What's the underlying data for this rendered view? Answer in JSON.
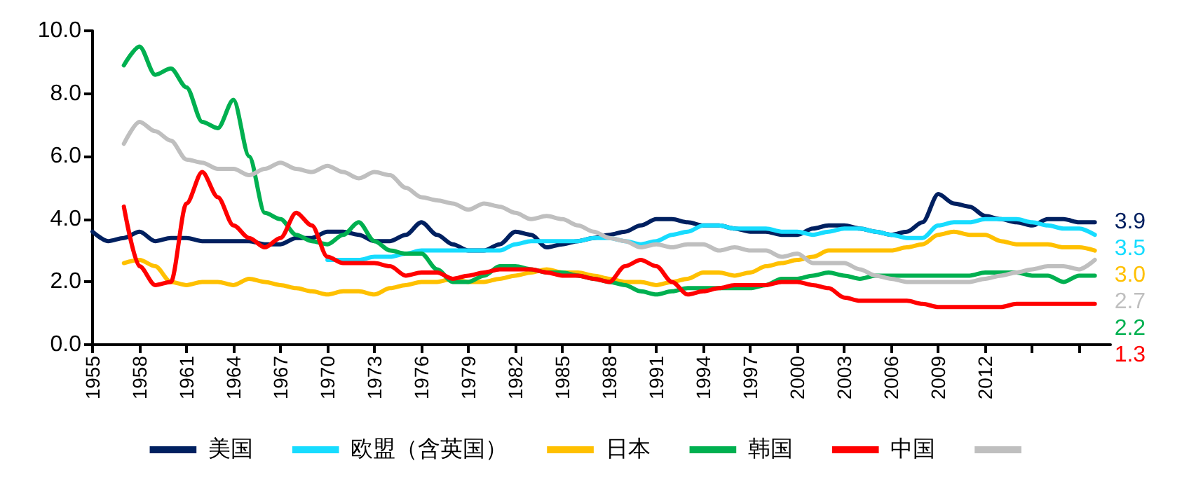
{
  "chart_data": {
    "type": "line",
    "x": [
      1955,
      1956,
      1957,
      1958,
      1959,
      1960,
      1961,
      1962,
      1963,
      1964,
      1965,
      1966,
      1967,
      1968,
      1969,
      1970,
      1971,
      1972,
      1973,
      1974,
      1975,
      1976,
      1977,
      1978,
      1979,
      1980,
      1981,
      1982,
      1983,
      1984,
      1985,
      1986,
      1987,
      1988,
      1989,
      1990,
      1991,
      1992,
      1993,
      1994,
      1995,
      1996,
      1997,
      1998,
      1999,
      2000,
      2001,
      2002,
      2003,
      2004,
      2005,
      2006,
      2007,
      2008,
      2009,
      2010,
      2011,
      2012,
      2013,
      2014,
      2015,
      2016,
      2017,
      2018,
      2019
    ],
    "series": [
      {
        "name": "美国",
        "color": "#002060",
        "values": [
          3.6,
          3.3,
          3.4,
          3.6,
          3.3,
          3.4,
          3.4,
          3.3,
          3.3,
          3.3,
          3.3,
          3.2,
          3.2,
          3.4,
          3.4,
          3.6,
          3.6,
          3.5,
          3.3,
          3.3,
          3.5,
          3.9,
          3.5,
          3.2,
          3.0,
          3.0,
          3.2,
          3.6,
          3.5,
          3.1,
          3.2,
          3.3,
          3.4,
          3.5,
          3.6,
          3.8,
          4.0,
          4.0,
          3.9,
          3.8,
          3.8,
          3.7,
          3.6,
          3.6,
          3.5,
          3.5,
          3.7,
          3.8,
          3.8,
          3.7,
          3.6,
          3.5,
          3.6,
          3.9,
          4.8,
          4.5,
          4.4,
          4.1,
          4.0,
          3.9,
          3.8,
          4.0,
          4.0,
          3.9,
          3.9
        ],
        "value_labels": [
          null,
          null,
          null,
          null,
          null,
          null,
          null,
          null,
          null,
          null,
          null,
          null,
          null,
          null,
          null,
          null,
          null,
          null,
          null,
          null,
          null,
          null,
          null,
          null,
          null,
          null,
          null,
          null,
          null,
          null,
          null,
          null,
          null,
          null,
          null,
          null,
          null,
          null,
          null,
          null,
          null,
          null,
          null,
          null,
          null,
          null,
          null,
          null,
          null,
          null,
          null,
          null,
          null,
          null,
          null,
          null,
          null,
          null,
          null,
          null,
          null,
          null,
          null,
          null,
          "3.9"
        ]
      },
      {
        "name": "欧盟（含英国）",
        "color": "#17DCFF",
        "values": [
          null,
          null,
          null,
          null,
          null,
          null,
          null,
          null,
          null,
          null,
          null,
          null,
          null,
          null,
          null,
          2.7,
          2.7,
          2.7,
          2.8,
          2.8,
          2.9,
          3.0,
          3.0,
          3.0,
          3.0,
          3.0,
          3.0,
          3.2,
          3.3,
          3.3,
          3.3,
          3.3,
          3.4,
          3.4,
          3.3,
          3.2,
          3.3,
          3.5,
          3.6,
          3.8,
          3.8,
          3.7,
          3.7,
          3.7,
          3.6,
          3.6,
          3.5,
          3.6,
          3.7,
          3.7,
          3.6,
          3.5,
          3.4,
          3.4,
          3.8,
          3.9,
          3.9,
          4.0,
          4.0,
          4.0,
          3.9,
          3.8,
          3.7,
          3.7,
          3.5
        ],
        "value_labels": [
          null,
          null,
          null,
          null,
          null,
          null,
          null,
          null,
          null,
          null,
          null,
          null,
          null,
          null,
          null,
          null,
          null,
          null,
          null,
          null,
          null,
          null,
          null,
          null,
          null,
          null,
          null,
          null,
          null,
          null,
          null,
          null,
          null,
          null,
          null,
          null,
          null,
          null,
          null,
          null,
          null,
          null,
          null,
          null,
          null,
          null,
          null,
          null,
          null,
          null,
          null,
          null,
          null,
          null,
          null,
          null,
          null,
          null,
          null,
          null,
          null,
          null,
          null,
          null,
          "3.5"
        ]
      },
      {
        "name": "日本",
        "color": "#FFC000",
        "values": [
          null,
          null,
          2.6,
          2.7,
          2.5,
          2.0,
          1.9,
          2.0,
          2.0,
          1.9,
          2.1,
          2.0,
          1.9,
          1.8,
          1.7,
          1.6,
          1.7,
          1.7,
          1.6,
          1.8,
          1.9,
          2.0,
          2.0,
          2.1,
          2.0,
          2.0,
          2.1,
          2.2,
          2.3,
          2.4,
          2.3,
          2.3,
          2.2,
          2.1,
          2.0,
          2.0,
          1.9,
          2.0,
          2.1,
          2.3,
          2.3,
          2.2,
          2.3,
          2.5,
          2.6,
          2.7,
          2.8,
          3.0,
          3.0,
          3.0,
          3.0,
          3.0,
          3.1,
          3.2,
          3.5,
          3.6,
          3.5,
          3.5,
          3.3,
          3.2,
          3.2,
          3.2,
          3.1,
          3.1,
          3.0
        ],
        "value_labels": [
          null,
          null,
          null,
          null,
          null,
          null,
          null,
          null,
          null,
          null,
          null,
          null,
          null,
          null,
          null,
          null,
          null,
          null,
          null,
          null,
          null,
          null,
          null,
          null,
          null,
          null,
          null,
          null,
          null,
          null,
          null,
          null,
          null,
          null,
          null,
          null,
          null,
          null,
          null,
          null,
          null,
          null,
          null,
          null,
          null,
          null,
          null,
          null,
          null,
          null,
          null,
          null,
          null,
          null,
          null,
          null,
          null,
          null,
          null,
          null,
          null,
          null,
          null,
          null,
          "3.0"
        ]
      },
      {
        "name": "韩国",
        "color": "#00B050",
        "values": [
          null,
          null,
          8.9,
          9.5,
          8.6,
          8.8,
          8.2,
          7.1,
          6.9,
          7.8,
          6.0,
          4.2,
          4.0,
          3.5,
          3.3,
          3.2,
          3.5,
          3.9,
          3.3,
          3.0,
          2.9,
          2.9,
          2.4,
          2.0,
          2.0,
          2.2,
          2.5,
          2.5,
          2.4,
          2.3,
          2.3,
          2.2,
          2.1,
          2.0,
          1.9,
          1.7,
          1.6,
          1.7,
          1.8,
          1.8,
          1.8,
          1.8,
          1.8,
          1.9,
          2.1,
          2.1,
          2.2,
          2.3,
          2.2,
          2.1,
          2.2,
          2.2,
          2.2,
          2.2,
          2.2,
          2.2,
          2.2,
          2.3,
          2.3,
          2.3,
          2.2,
          2.2,
          2.0,
          2.2,
          2.2
        ],
        "value_labels": [
          null,
          null,
          null,
          null,
          null,
          null,
          null,
          null,
          null,
          null,
          null,
          null,
          null,
          null,
          null,
          null,
          null,
          null,
          null,
          null,
          null,
          null,
          null,
          null,
          null,
          null,
          null,
          null,
          null,
          null,
          null,
          null,
          null,
          null,
          null,
          null,
          null,
          null,
          null,
          null,
          null,
          null,
          null,
          null,
          null,
          null,
          null,
          null,
          null,
          null,
          null,
          null,
          null,
          null,
          null,
          null,
          null,
          null,
          null,
          null,
          null,
          null,
          null,
          null,
          "2.2"
        ]
      },
      {
        "name": "中国",
        "color": "#FF0000",
        "values": [
          null,
          null,
          4.4,
          2.5,
          1.9,
          2.0,
          4.5,
          5.5,
          4.7,
          3.8,
          3.4,
          3.1,
          3.4,
          4.2,
          3.8,
          2.8,
          2.6,
          2.6,
          2.6,
          2.5,
          2.2,
          2.3,
          2.3,
          2.1,
          2.2,
          2.3,
          2.4,
          2.4,
          2.4,
          2.3,
          2.2,
          2.2,
          2.1,
          2.0,
          2.5,
          2.7,
          2.5,
          2.0,
          1.6,
          1.7,
          1.8,
          1.9,
          1.9,
          1.9,
          2.0,
          2.0,
          1.9,
          1.8,
          1.5,
          1.4,
          1.4,
          1.4,
          1.4,
          1.3,
          1.2,
          1.2,
          1.2,
          1.2,
          1.2,
          1.3,
          1.3,
          1.3,
          1.3,
          1.3,
          1.3
        ],
        "value_labels": [
          null,
          null,
          null,
          null,
          null,
          null,
          null,
          null,
          null,
          null,
          null,
          null,
          null,
          null,
          null,
          null,
          null,
          null,
          null,
          null,
          null,
          null,
          null,
          null,
          null,
          null,
          null,
          null,
          null,
          null,
          null,
          null,
          null,
          null,
          null,
          null,
          null,
          null,
          null,
          null,
          null,
          null,
          null,
          null,
          null,
          null,
          null,
          null,
          null,
          null,
          null,
          null,
          null,
          null,
          null,
          null,
          null,
          null,
          null,
          null,
          null,
          null,
          null,
          null,
          "1.3"
        ]
      },
      {
        "color": "#BFBFBF",
        "values": [
          null,
          null,
          6.4,
          7.1,
          6.8,
          6.5,
          5.9,
          5.8,
          5.6,
          5.6,
          5.4,
          5.6,
          5.8,
          5.6,
          5.5,
          5.7,
          5.5,
          5.3,
          5.5,
          5.4,
          5.0,
          4.7,
          4.6,
          4.5,
          4.3,
          4.5,
          4.4,
          4.2,
          4.0,
          4.1,
          4.0,
          3.8,
          3.6,
          3.4,
          3.3,
          3.1,
          3.2,
          3.1,
          3.2,
          3.2,
          3.0,
          3.1,
          3.0,
          3.0,
          2.8,
          2.9,
          2.6,
          2.6,
          2.6,
          2.4,
          2.2,
          2.1,
          2.0,
          2.0,
          2.0,
          2.0,
          2.0,
          2.1,
          2.2,
          2.3,
          2.4,
          2.5,
          2.5,
          2.4,
          2.7
        ],
        "value_labels": [
          null,
          null,
          null,
          null,
          null,
          null,
          null,
          null,
          null,
          null,
          null,
          null,
          null,
          null,
          null,
          null,
          null,
          null,
          null,
          null,
          null,
          null,
          null,
          null,
          null,
          null,
          null,
          null,
          null,
          null,
          null,
          null,
          null,
          null,
          null,
          null,
          null,
          null,
          null,
          null,
          null,
          null,
          null,
          null,
          null,
          null,
          null,
          null,
          null,
          null,
          null,
          null,
          null,
          null,
          null,
          null,
          null,
          null,
          null,
          null,
          null,
          null,
          null,
          null,
          "2.7"
        ]
      }
    ],
    "xlim": [
      1955,
      2020
    ],
    "xticks": [
      1955,
      1958,
      1961,
      1964,
      1967,
      1970,
      1973,
      1976,
      1979,
      1982,
      1985,
      1988,
      1991,
      1994,
      1997,
      2000,
      2003,
      2006,
      2009,
      2012,
      {
        "value": 2015,
        "label": null
      },
      {
        "value": 2018,
        "label": null
      }
    ],
    "ylim": [
      0,
      10
    ],
    "yticks": [
      {
        "value": 0,
        "label": "0.0"
      },
      {
        "value": 2,
        "label": "2.0"
      },
      {
        "value": 4,
        "label": "4.0"
      },
      {
        "value": 6,
        "label": "6.0"
      },
      {
        "value": 8,
        "label": "8.0"
      },
      {
        "value": 10,
        "label": "10.0"
      }
    ],
    "grid": false,
    "legend": "bottom",
    "marker": "none",
    "line_style": "solid"
  }
}
